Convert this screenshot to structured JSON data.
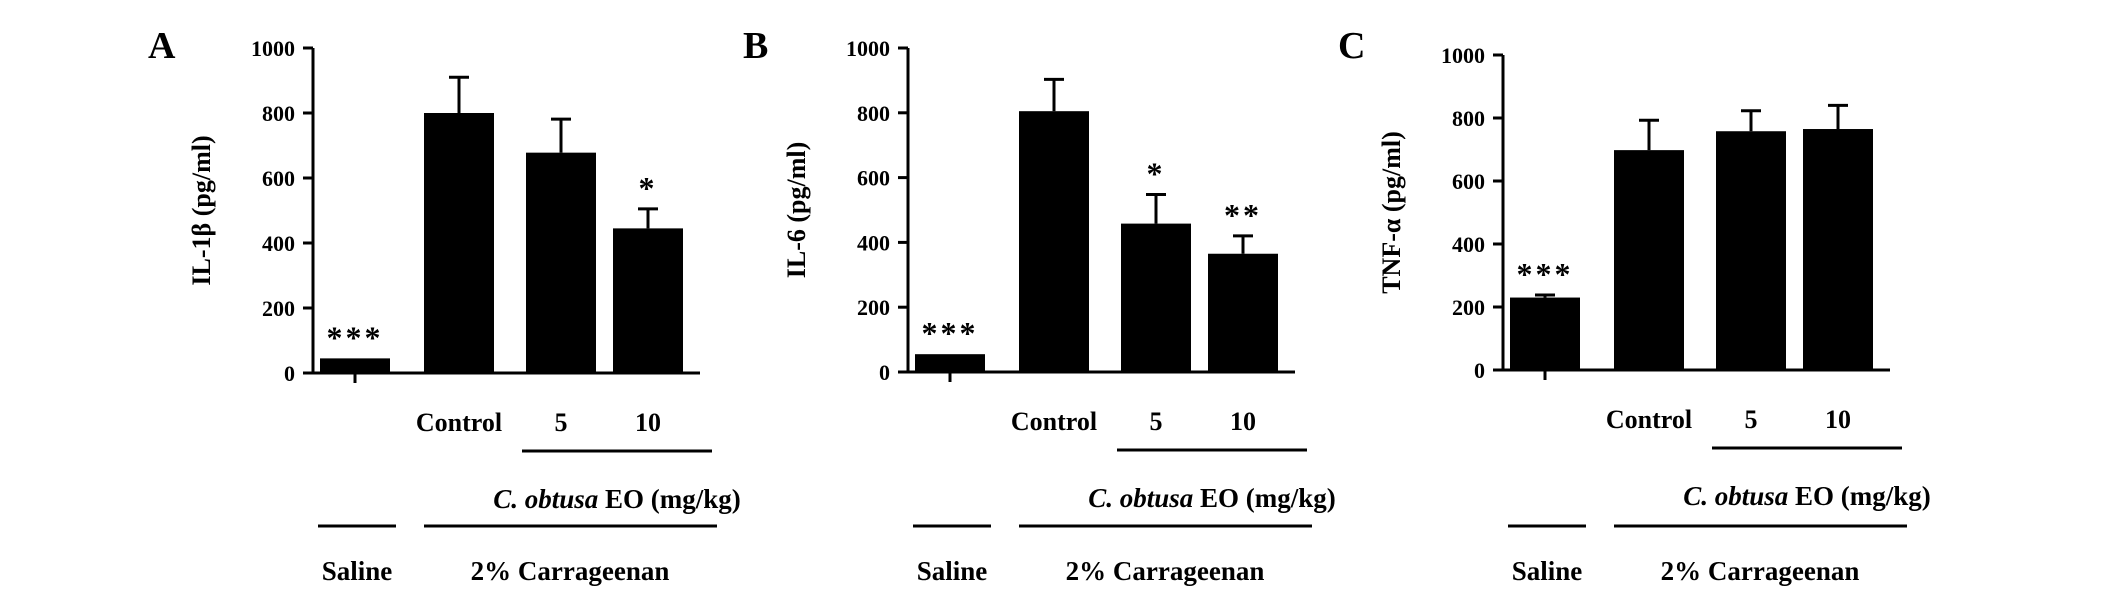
{
  "chart_data": [
    {
      "type": "bar",
      "panel": "A",
      "ylabel": "IL-1β (pg/ml)",
      "ylim": [
        0,
        1000
      ],
      "yticks": [
        "0",
        "200",
        "400",
        "600",
        "800",
        "1000"
      ],
      "categories": [
        "",
        "Control",
        "5",
        "10"
      ],
      "values": [
        45,
        800,
        678,
        445
      ],
      "errors": [
        0,
        110,
        103,
        60
      ],
      "significance": [
        "***",
        "",
        "",
        "*"
      ]
    },
    {
      "type": "bar",
      "panel": "B",
      "ylabel": "IL-6 (pg/ml)",
      "ylim": [
        0,
        1000
      ],
      "yticks": [
        "0",
        "200",
        "400",
        "600",
        "800",
        "1000"
      ],
      "categories": [
        "",
        "Control",
        "5",
        "10"
      ],
      "values": [
        55,
        805,
        458,
        365
      ],
      "errors": [
        0,
        98,
        90,
        55
      ],
      "significance": [
        "***",
        "",
        "*",
        "**"
      ]
    },
    {
      "type": "bar",
      "panel": "C",
      "ylabel": "TNF-α (pg/ml)",
      "ylim": [
        0,
        1000
      ],
      "yticks": [
        "0",
        "200",
        "400",
        "600",
        "800",
        "1000"
      ],
      "categories": [
        "",
        "Control",
        "5",
        "10"
      ],
      "values": [
        230,
        698,
        758,
        765
      ],
      "errors": [
        8,
        95,
        65,
        75
      ],
      "significance": [
        "***",
        "",
        "",
        ""
      ]
    }
  ],
  "group_labels": {
    "treatment_italic": "C. obtusa",
    "treatment_rest": " EO (mg/kg)",
    "saline": "Saline",
    "carrageenan": "2% Carrageenan"
  },
  "colors": {
    "bar": "#000000",
    "background": "#ffffff"
  }
}
